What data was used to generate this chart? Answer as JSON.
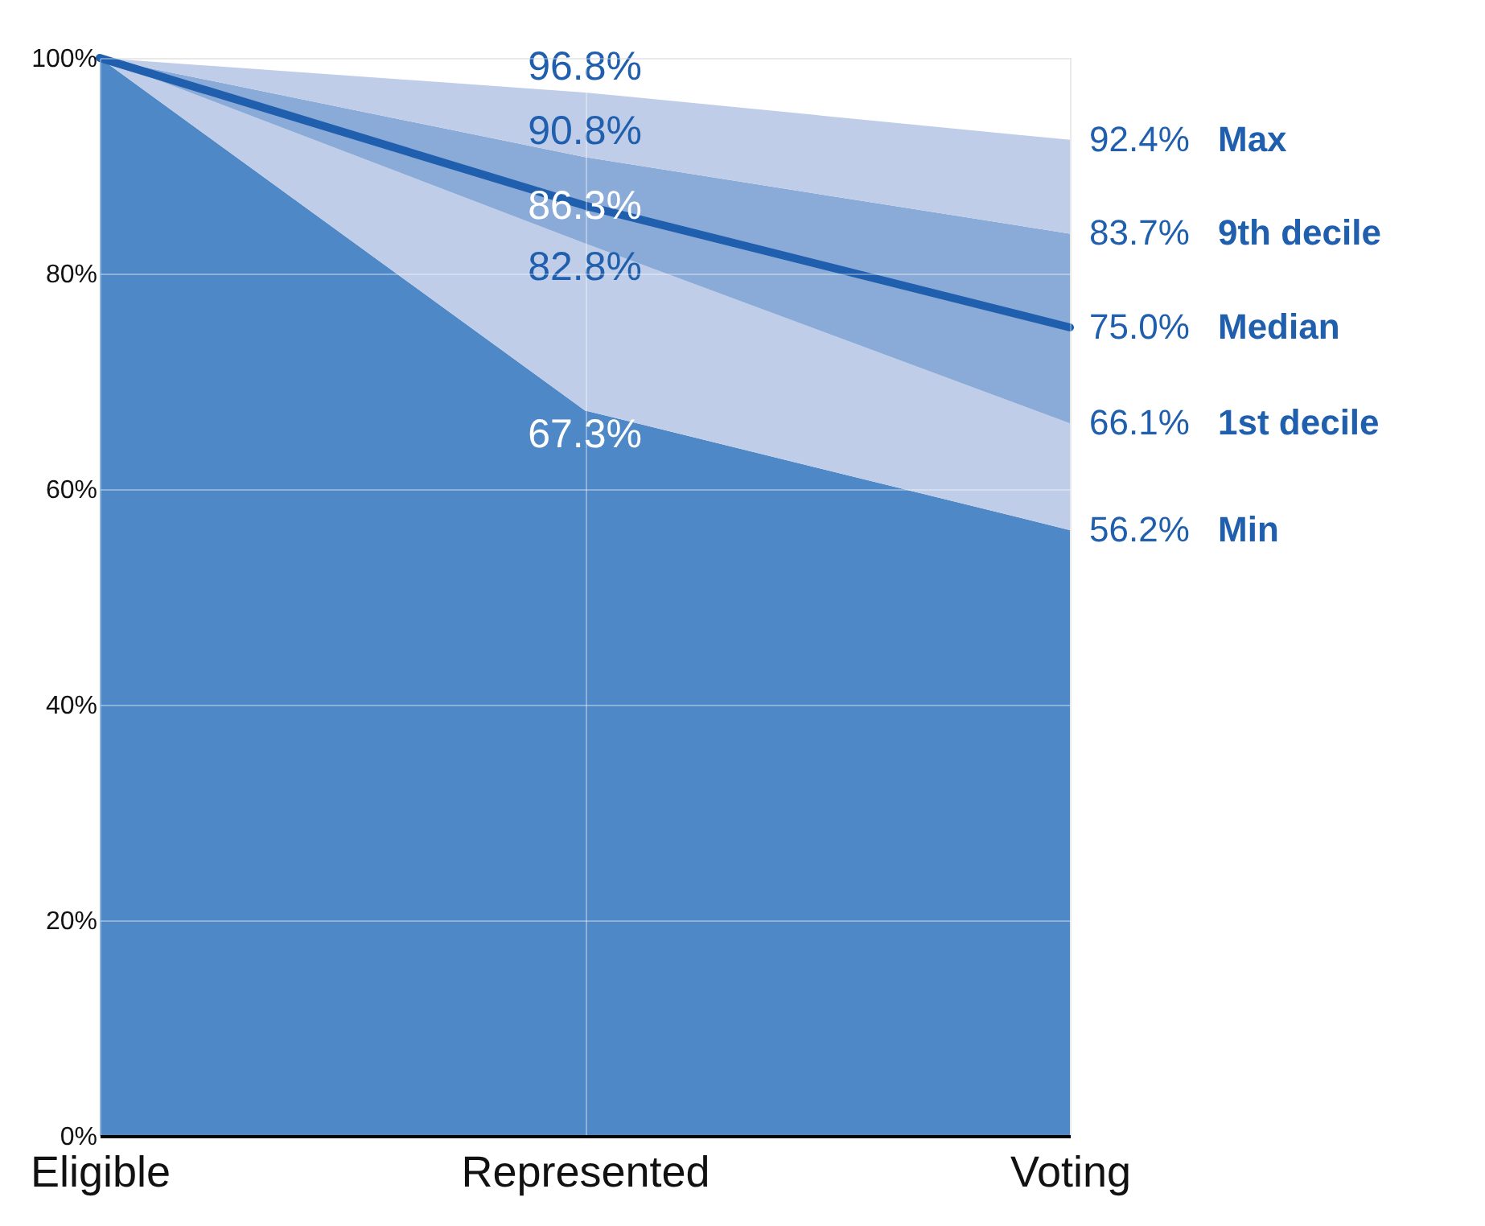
{
  "chart_data": {
    "type": "area",
    "categories": [
      "Eligible",
      "Represented",
      "Voting"
    ],
    "series": [
      {
        "name": "Min",
        "color": "#4f88c6",
        "values": [
          100,
          67.3,
          56.2
        ],
        "value_labels": [
          null,
          "67.3%",
          "56.2%"
        ]
      },
      {
        "name": "1st decile",
        "color": "#bfcde8",
        "values": [
          100,
          82.8,
          66.1
        ],
        "value_labels": [
          null,
          "82.8%",
          "66.1%"
        ]
      },
      {
        "name": "9th decile",
        "color": "#8aabd8",
        "values": [
          100,
          90.8,
          83.7
        ],
        "value_labels": [
          null,
          "90.8%",
          "83.7%"
        ]
      },
      {
        "name": "Max",
        "color": "#bfcde8",
        "values": [
          100,
          96.8,
          92.4
        ],
        "value_labels": [
          null,
          "96.8%",
          "92.4%"
        ]
      },
      {
        "name": "Median",
        "type": "line",
        "color": "#1f5fae",
        "values": [
          100,
          86.3,
          75.0
        ],
        "value_labels": [
          null,
          "86.3%",
          "75.0%"
        ]
      }
    ],
    "ylim": [
      0,
      100
    ],
    "yticks": [
      {
        "value": 0,
        "label": "0%"
      },
      {
        "value": 20,
        "label": "20%"
      },
      {
        "value": 40,
        "label": "40%"
      },
      {
        "value": 60,
        "label": "60%"
      },
      {
        "value": 80,
        "label": "80%"
      },
      {
        "value": 100,
        "label": "100%"
      }
    ],
    "grid": true
  }
}
